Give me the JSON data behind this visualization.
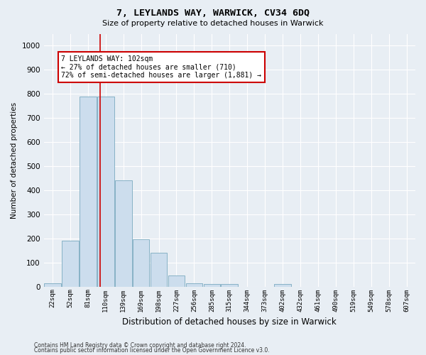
{
  "title1": "7, LEYLANDS WAY, WARWICK, CV34 6DQ",
  "title2": "Size of property relative to detached houses in Warwick",
  "xlabel": "Distribution of detached houses by size in Warwick",
  "ylabel": "Number of detached properties",
  "categories": [
    "22sqm",
    "52sqm",
    "81sqm",
    "110sqm",
    "139sqm",
    "169sqm",
    "198sqm",
    "227sqm",
    "256sqm",
    "285sqm",
    "315sqm",
    "344sqm",
    "373sqm",
    "402sqm",
    "432sqm",
    "461sqm",
    "490sqm",
    "519sqm",
    "549sqm",
    "578sqm",
    "607sqm"
  ],
  "bar_heights": [
    15,
    190,
    790,
    790,
    440,
    195,
    140,
    45,
    15,
    10,
    10,
    0,
    0,
    10,
    0,
    0,
    0,
    0,
    0,
    0,
    0
  ],
  "bar_color": "#ccdded",
  "bar_edge_color": "#7aaac0",
  "vline_x": 2.67,
  "vline_color": "#cc0000",
  "annotation_text": "7 LEYLANDS WAY: 102sqm\n← 27% of detached houses are smaller (710)\n72% of semi-detached houses are larger (1,881) →",
  "annotation_box_color": "#ffffff",
  "annotation_box_edge_color": "#cc0000",
  "ylim": [
    0,
    1050
  ],
  "yticks": [
    0,
    100,
    200,
    300,
    400,
    500,
    600,
    700,
    800,
    900,
    1000
  ],
  "footer1": "Contains HM Land Registry data © Crown copyright and database right 2024.",
  "footer2": "Contains public sector information licensed under the Open Government Licence v3.0.",
  "bg_color": "#e8eef4",
  "plot_bg_color": "#e8eef4"
}
